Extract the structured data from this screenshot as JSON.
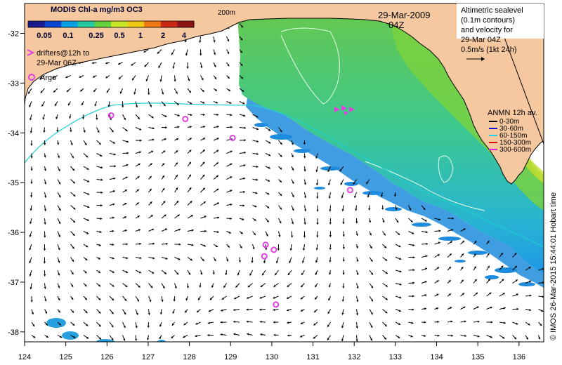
{
  "colorbar": {
    "title": "MODIS Chl-a mg/m3 OC3",
    "ticks": [
      "0.05",
      "0.1",
      "0.25",
      "0.5",
      "1",
      "2",
      "4"
    ],
    "colors": [
      "#1a1a8c",
      "#0a46d2",
      "#0aa0e6",
      "#28c8a0",
      "#64d23c",
      "#c8e628",
      "#f0c814",
      "#f07814",
      "#c82814",
      "#8c1414"
    ]
  },
  "isobath_label": "200m",
  "date": {
    "day": "29-Mar-2009",
    "time": "04Z"
  },
  "altimetry_legend": {
    "lines": [
      "Altimetric sealevel",
      "(0.1m contours)",
      "and velocity for",
      "29-Mar 04Z"
    ],
    "scale_label": "0.5m/s (1kt 24h)"
  },
  "drifters_legend": {
    "lines": [
      "drifters@12h to",
      "29-Mar 06Z"
    ],
    "color": "#e040e0"
  },
  "argo_legend": {
    "label": "Argo",
    "color": "#e040e0"
  },
  "anmn_legend": {
    "title": "ANMN 12h av.",
    "items": [
      {
        "label": "0-30m",
        "color": "#000000"
      },
      {
        "label": "30-60m",
        "color": "#1010e0"
      },
      {
        "label": "60-150m",
        "color": "#20d0f0"
      },
      {
        "label": "150-300m",
        "color": "#e01010"
      },
      {
        "label": "300-600m",
        "color": "#e020e0"
      }
    ]
  },
  "axes": {
    "x_ticks": [
      124,
      125,
      126,
      127,
      128,
      129,
      130,
      131,
      132,
      133,
      134,
      135,
      136
    ],
    "y_ticks": [
      -32,
      -33,
      -34,
      -35,
      -36,
      -37,
      -38
    ],
    "lon_range": [
      124,
      136.6
    ],
    "lat_range": [
      -38.2,
      -31.4
    ]
  },
  "argo_floats": [
    {
      "lon": 126.1,
      "lat": -33.65
    },
    {
      "lon": 127.9,
      "lat": -33.72
    },
    {
      "lon": 129.05,
      "lat": -34.1
    },
    {
      "lon": 131.9,
      "lat": -35.15
    },
    {
      "lon": 129.85,
      "lat": -36.25
    },
    {
      "lon": 129.82,
      "lat": -36.48
    },
    {
      "lon": 130.05,
      "lat": -36.35
    },
    {
      "lon": 130.1,
      "lat": -37.45
    }
  ],
  "credit": "© IMOS 26-Mar-2015 15:44:01 Hobart time",
  "colors": {
    "land": "#f5c8a0",
    "coast": "#000000",
    "isobath": "#20d0d0",
    "sst_contour": "#e8ffe8"
  }
}
